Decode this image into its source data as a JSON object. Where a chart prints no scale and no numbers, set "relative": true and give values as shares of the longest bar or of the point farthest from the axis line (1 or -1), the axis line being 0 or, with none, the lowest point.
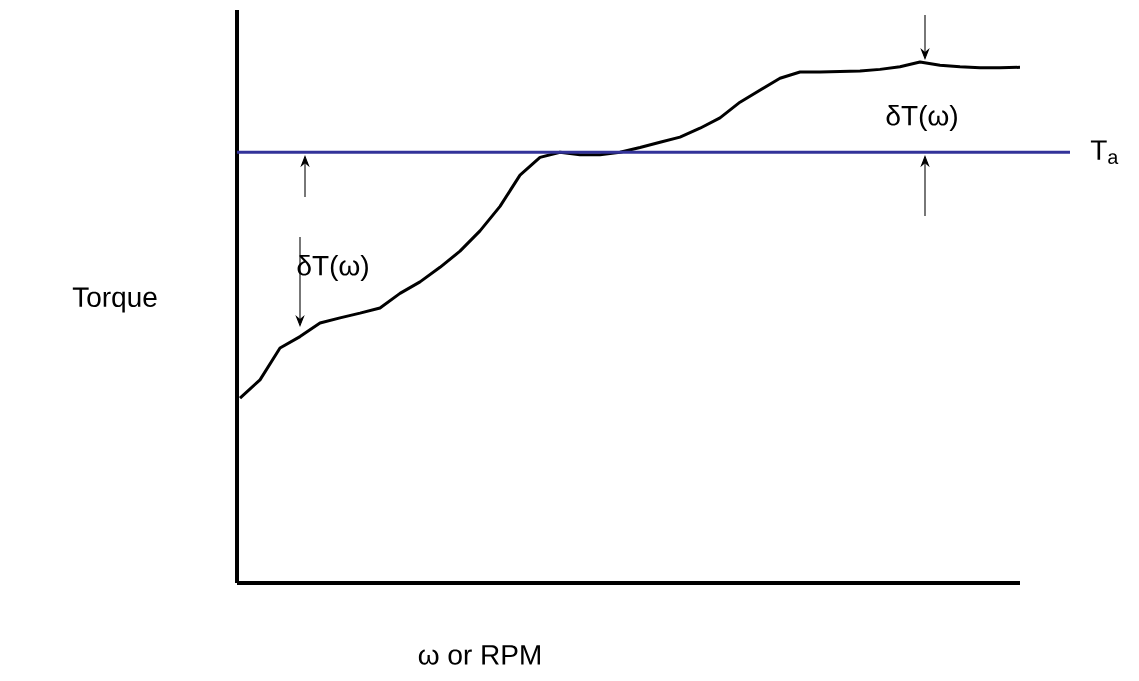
{
  "chart_data": {
    "type": "line",
    "relative": true,
    "xlabel": "ω or RPM",
    "ylabel": "Torque",
    "categories": [
      null,
      null,
      null,
      null,
      null,
      null,
      null,
      null,
      null,
      null,
      null,
      null,
      null,
      null,
      null,
      null,
      null,
      null,
      null,
      null,
      null,
      null,
      null,
      null,
      null,
      null,
      null,
      null,
      null,
      null,
      null,
      null,
      null,
      null,
      null,
      null,
      null,
      null,
      null,
      null
    ],
    "series": [
      {
        "color": "#000000",
        "values": [
          0.355,
          0.39,
          0.451,
          0.473,
          0.499,
          0.509,
          0.518,
          0.528,
          0.556,
          0.578,
          0.606,
          0.637,
          0.676,
          0.723,
          0.783,
          0.817,
          0.827,
          0.822,
          0.822,
          0.827,
          0.836,
          0.846,
          0.856,
          0.873,
          0.893,
          0.923,
          0.946,
          0.969,
          0.981,
          0.981,
          0.982,
          0.983,
          0.986,
          0.991,
          1.0,
          0.994,
          0.991,
          0.989,
          0.989,
          0.99
        ]
      }
    ],
    "ref_lines": [
      {
        "axis": "y",
        "value": 0.827,
        "label": "T$_{a}$",
        "color": "#333399"
      }
    ],
    "annotations": [
      "δT(ω)",
      "δT(ω)"
    ],
    "marker": "none",
    "line_style": "solid"
  }
}
